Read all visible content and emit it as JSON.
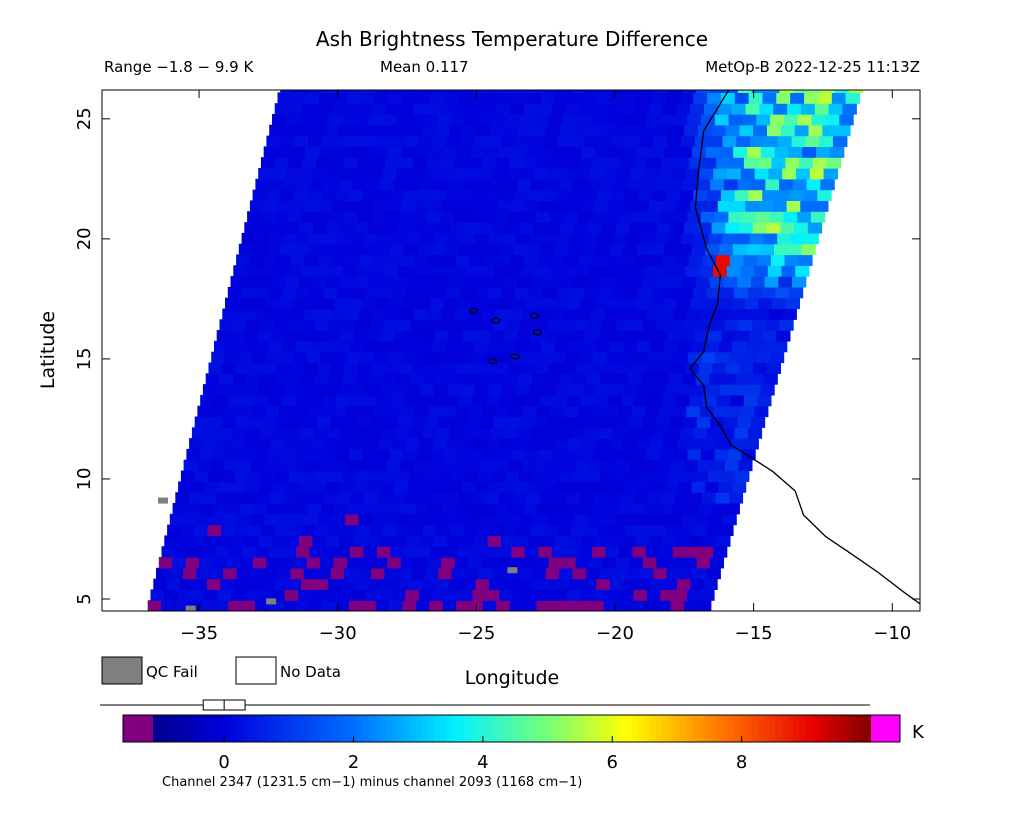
{
  "header": {
    "title": "Ash Brightness Temperature Difference",
    "range_text": "Range −1.8 − 9.9 K",
    "mean_text": "Mean 0.117",
    "satellite_time": "MetOp-B 2022-12-25 11:13Z"
  },
  "legend": {
    "qc_fail_label": "QC Fail",
    "no_data_label": "No Data",
    "qc_fail_color": "#7f7f7f",
    "no_data_color": "#ffffff"
  },
  "colorbar": {
    "unit": "K",
    "min": -1.1,
    "max": 10,
    "ticks": [
      0,
      2,
      4,
      6,
      8
    ],
    "under_color": "#800080",
    "over_color": "#ff00ff",
    "box_low": -0.2,
    "box_high": 0.2,
    "box_median": 0,
    "caption": "Channel 2347 (1231.5 cm−1) minus channel 2093 (1168 cm−1)"
  },
  "chart_data": {
    "type": "heatmap",
    "title": "Ash Brightness Temperature Difference",
    "xlabel": "Longitude",
    "ylabel": "Latitude",
    "xlim": [
      -38.5,
      -9
    ],
    "ylim": [
      4.5,
      26.2
    ],
    "x_ticks": [
      -35,
      -30,
      -25,
      -20,
      -15,
      -10
    ],
    "y_ticks": [
      5,
      10,
      15,
      20,
      25
    ],
    "x_tick_labels": [
      "−35",
      "−30",
      "−25",
      "−20",
      "−15",
      "−10"
    ],
    "y_tick_labels": [
      "5",
      "10",
      "15",
      "20",
      "25"
    ],
    "value_range": [
      -1.8,
      9.9
    ],
    "mean": 0.117,
    "units": "K",
    "swath_corners": [
      [
        -32.1,
        26.2
      ],
      [
        -11.1,
        26.2
      ],
      [
        -16.6,
        4.5
      ],
      [
        -36.9,
        4.5
      ]
    ],
    "background_value": 0.1,
    "high_region": {
      "lon_range": [
        -17.5,
        -11.1
      ],
      "lat_range": [
        17.8,
        26.2
      ],
      "value_range": [
        1.5,
        5.5
      ],
      "hotspot_lonlat": [
        -16.2,
        18.9
      ],
      "hotspot_value": 9.0
    },
    "low_value_region": {
      "lat_range": [
        4.5,
        8.5
      ],
      "value": -1.5
    },
    "qc_fail_points": [
      [
        -36.3,
        9.1
      ],
      [
        -35.3,
        4.6
      ],
      [
        -32.4,
        4.9
      ],
      [
        -23.7,
        6.2
      ]
    ],
    "coastlines": [
      [
        [
          -15.9,
          26.2
        ],
        [
          -16.8,
          24.5
        ],
        [
          -17.0,
          22.7
        ],
        [
          -17.1,
          21.3
        ],
        [
          -16.7,
          19.6
        ],
        [
          -16.2,
          18.5
        ],
        [
          -16.3,
          17.3
        ],
        [
          -16.6,
          16.4
        ],
        [
          -16.8,
          15.3
        ],
        [
          -17.3,
          14.6
        ],
        [
          -16.8,
          13.9
        ],
        [
          -16.7,
          13.0
        ],
        [
          -16.2,
          12.2
        ],
        [
          -15.8,
          11.4
        ],
        [
          -15.1,
          10.9
        ],
        [
          -14.3,
          10.3
        ],
        [
          -13.5,
          9.5
        ],
        [
          -13.2,
          8.5
        ],
        [
          -12.4,
          7.6
        ],
        [
          -11.5,
          6.9
        ],
        [
          -10.5,
          6.1
        ],
        [
          -9.6,
          5.3
        ],
        [
          -9.0,
          4.8
        ]
      ]
    ],
    "islands": [
      {
        "name": "",
        "lonlat": [
          -25.1,
          17.0
        ]
      },
      {
        "name": "",
        "lonlat": [
          -24.3,
          16.6
        ]
      },
      {
        "name": "",
        "lonlat": [
          -22.9,
          16.8
        ]
      },
      {
        "name": "",
        "lonlat": [
          -22.8,
          16.1
        ]
      },
      {
        "name": "",
        "lonlat": [
          -23.6,
          15.1
        ]
      },
      {
        "name": "",
        "lonlat": [
          -24.4,
          14.9
        ]
      }
    ]
  }
}
